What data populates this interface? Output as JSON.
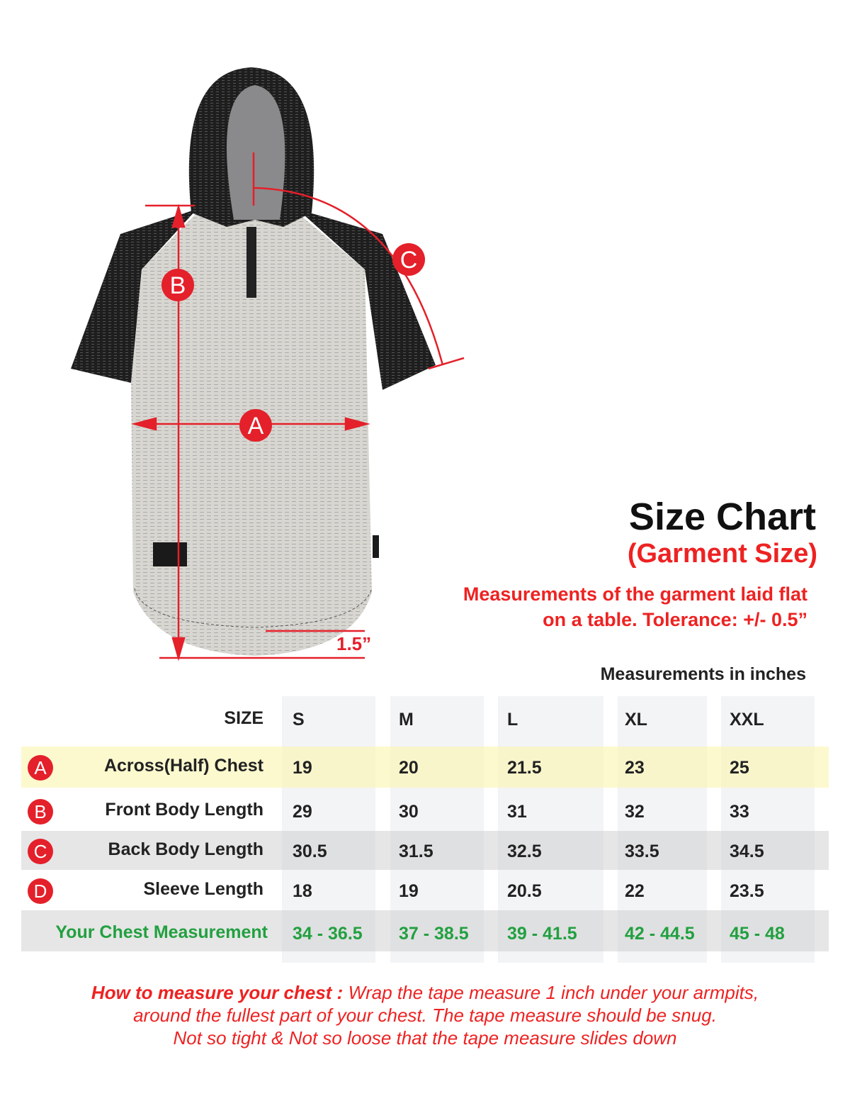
{
  "header": {
    "title": "Size Chart",
    "subtitle": "(Garment Size)",
    "note_line1": "Measurements of the garment laid flat",
    "note_line2": "on a table.  Tolerance: +/- 0.5”",
    "units": "Measurements in inches"
  },
  "diagram": {
    "markers": [
      "A",
      "B",
      "C"
    ],
    "hem_label": "1.5”"
  },
  "table": {
    "size_label": "SIZE",
    "sizes": [
      "S",
      "M",
      "L",
      "XL",
      "XXL"
    ],
    "rows": [
      {
        "badge": "A",
        "label": "Across(Half) Chest",
        "values": [
          "19",
          "20",
          "21.5",
          "23",
          "25"
        ]
      },
      {
        "badge": "B",
        "label": "Front Body Length",
        "values": [
          "29",
          "30",
          "31",
          "32",
          "33"
        ]
      },
      {
        "badge": "C",
        "label": "Back Body Length",
        "values": [
          "30.5",
          "31.5",
          "32.5",
          "33.5",
          "34.5"
        ]
      },
      {
        "badge": "D",
        "label": "Sleeve Length",
        "values": [
          "18",
          "19",
          "20.5",
          "22",
          "23.5"
        ]
      }
    ],
    "chest": {
      "label": "Your Chest Measurement",
      "values": [
        "34 - 36.5",
        "37 - 38.5",
        "39 - 41.5",
        "42 - 44.5",
        "45 - 48"
      ]
    }
  },
  "howto": {
    "lead": "How to measure your chest :",
    "line1": " Wrap the tape measure 1 inch under your armpits,",
    "line2": "around the fullest part of your chest. The tape measure should be snug.",
    "line3": "Not so tight & Not so loose that the tape measure slides down"
  },
  "colors": {
    "red": "#e4202a",
    "green": "#22a040",
    "highlight": "#faf8cf",
    "row_gray": "#e6e6e6"
  }
}
